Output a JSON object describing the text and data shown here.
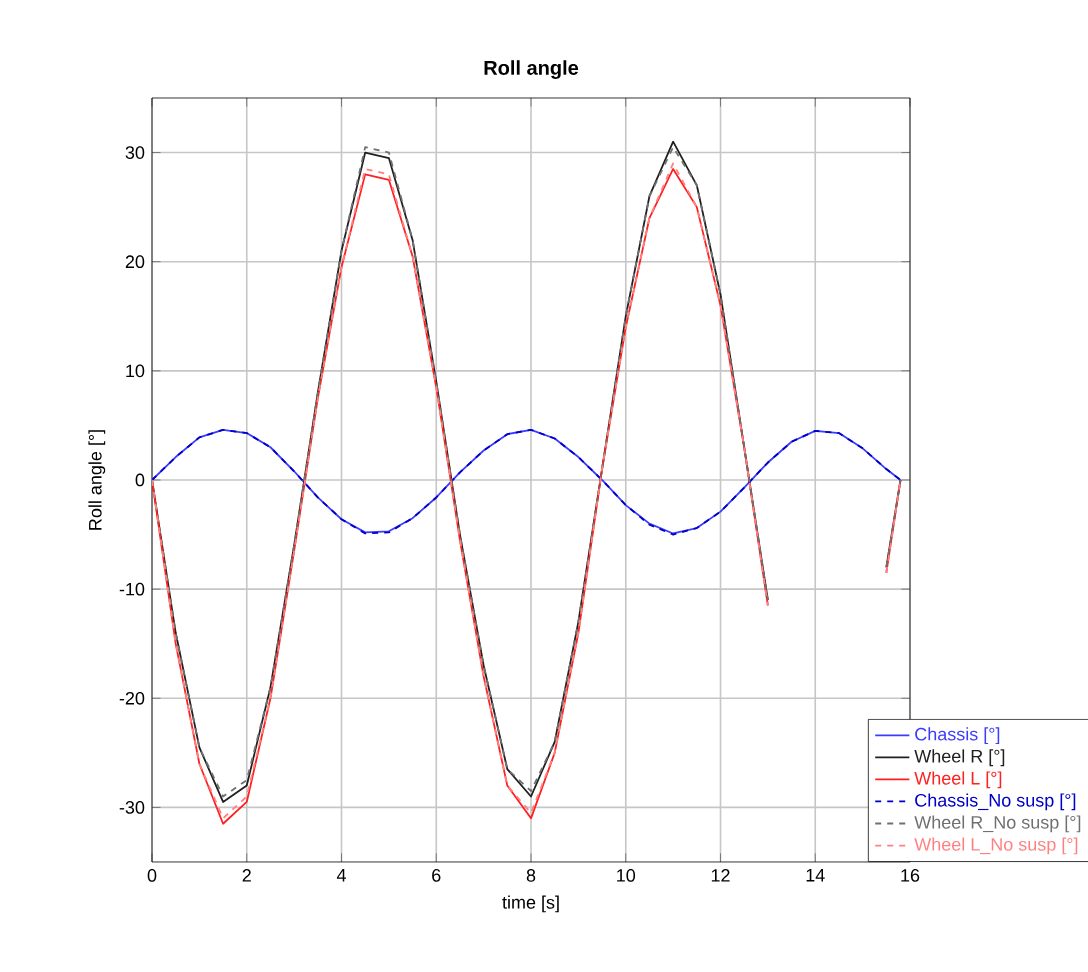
{
  "chart_data": {
    "type": "line",
    "title": "Roll angle",
    "xlabel": "time [s]",
    "ylabel": "Roll angle [°]",
    "x": [
      0,
      0.5,
      1,
      1.5,
      2,
      2.5,
      3,
      3.5,
      4,
      4.5,
      5,
      5.5,
      6,
      6.5,
      7,
      7.5,
      8,
      8.5,
      9,
      9.5,
      10,
      10.5,
      11,
      11.5,
      12,
      12.5,
      13,
      13.5,
      14,
      14.5,
      15,
      15.5,
      15.8
    ],
    "series": [
      {
        "name": "Chassis [°]",
        "color": "#3c3cff",
        "line_style": "solid",
        "values": [
          0,
          2.1,
          3.9,
          4.6,
          4.3,
          3,
          0.8,
          -1.6,
          -3.6,
          -4.8,
          -4.7,
          -3.5,
          -1.6,
          0.7,
          2.7,
          4.2,
          4.6,
          3.8,
          2.1,
          0,
          -2.3,
          -4,
          -4.9,
          -4.4,
          -2.9,
          -0.7,
          1.6,
          3.5,
          4.5,
          4.3,
          2.9,
          1,
          0
        ]
      },
      {
        "name": "Wheel R [°]",
        "color": "#202020",
        "line_style": "solid",
        "values": [
          0,
          -14,
          -24.5,
          -29.5,
          -28,
          -19,
          -6,
          8,
          21,
          30,
          29.5,
          22,
          9,
          -5,
          -17,
          -26.5,
          -29,
          -24,
          -13,
          1,
          15,
          26,
          31,
          27,
          17,
          3,
          -11,
          null,
          null,
          null,
          null,
          -8,
          0
        ]
      },
      {
        "name": "Wheel L [°]",
        "color": "#ff2020",
        "line_style": "solid",
        "values": [
          0,
          -15,
          -26,
          -31.5,
          -29.5,
          -20,
          -6.5,
          7.5,
          19.5,
          28,
          27.5,
          20.5,
          8.5,
          -5.5,
          -18,
          -28,
          -31,
          -25,
          -14,
          1,
          14,
          24,
          28.5,
          25,
          16,
          3,
          -11.5,
          null,
          null,
          null,
          null,
          -8.5,
          0
        ]
      },
      {
        "name": "Chassis_No susp [°]",
        "color": "#0000c8",
        "line_style": "dashed",
        "values": [
          0,
          2.1,
          3.9,
          4.6,
          4.3,
          3,
          0.8,
          -1.6,
          -3.6,
          -4.9,
          -4.8,
          -3.5,
          -1.6,
          0.7,
          2.7,
          4.2,
          4.6,
          3.8,
          2.1,
          0,
          -2.3,
          -4.1,
          -5,
          -4.4,
          -2.9,
          -0.7,
          1.6,
          3.5,
          4.5,
          4.3,
          2.9,
          1,
          0
        ]
      },
      {
        "name": "Wheel R_No susp [°]",
        "color": "#707070",
        "line_style": "dashed",
        "values": [
          0,
          -14,
          -24.5,
          -29,
          -27.5,
          -19,
          -6,
          8,
          21,
          30.5,
          30,
          22,
          9,
          -5,
          -17,
          -26.5,
          -28.5,
          -24,
          -13,
          1,
          15,
          26,
          30.5,
          27,
          17,
          3,
          -11,
          null,
          null,
          null,
          null,
          -8,
          0
        ]
      },
      {
        "name": "Wheel L_No susp [°]",
        "color": "#ff8080",
        "line_style": "dashed",
        "values": [
          0,
          -15,
          -26,
          -31,
          -29,
          -20,
          -6.5,
          7.5,
          19.5,
          28.5,
          28,
          20.5,
          8.5,
          -5.5,
          -18,
          -28,
          -30.5,
          -25,
          -14,
          1,
          14,
          24,
          29,
          25,
          16,
          3,
          -11.5,
          null,
          null,
          null,
          null,
          -8.5,
          0
        ]
      }
    ],
    "xlim": [
      0,
      16
    ],
    "xticks": [
      0,
      2,
      4,
      6,
      8,
      10,
      12,
      14,
      16
    ],
    "ylim": [
      -35,
      35
    ],
    "yticks": [
      -30,
      -20,
      -10,
      0,
      10,
      20,
      30
    ],
    "grid": true,
    "legend": "bottom right",
    "marker": "none"
  }
}
